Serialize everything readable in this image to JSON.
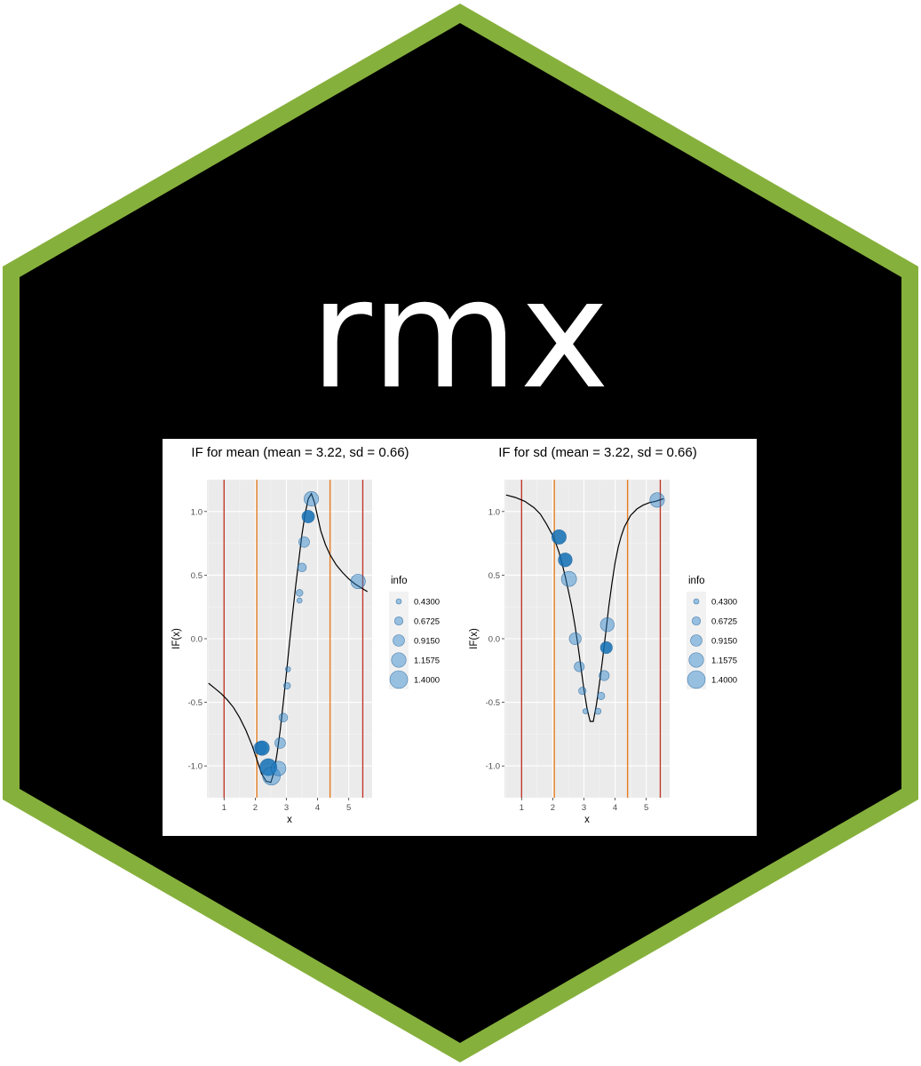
{
  "logo": {
    "title": "rmx",
    "colors": {
      "border": "#86b03c",
      "background": "#000000",
      "text": "#ffffff"
    }
  },
  "chart_data": [
    {
      "type": "scatter",
      "title": "IF for mean (mean = 3.22, sd = 0.66)",
      "xlabel": "x",
      "ylabel": "IF(x)",
      "xlim": [
        0.45,
        5.75
      ],
      "ylim": [
        -1.25,
        1.25
      ],
      "x_ticks": [
        1,
        2,
        3,
        4,
        5
      ],
      "y_ticks": [
        -1.0,
        -0.5,
        0.0,
        0.5,
        1.0
      ],
      "y_tick_labels": [
        "-1.0",
        "-0.5",
        "0.0",
        "0.5",
        "1.0"
      ],
      "grid": true,
      "background": "#ebebeb",
      "vlines": [
        {
          "x": 1.0,
          "color": "#c0392b"
        },
        {
          "x": 2.05,
          "color": "#e67e22"
        },
        {
          "x": 4.4,
          "color": "#e67e22"
        },
        {
          "x": 5.45,
          "color": "#c0392b"
        }
      ],
      "curve": {
        "x": [
          0.5,
          0.7,
          0.9,
          1.1,
          1.3,
          1.5,
          1.7,
          1.9,
          2.05,
          2.2,
          2.35,
          2.5,
          2.6,
          2.7,
          2.8,
          2.9,
          3.0,
          3.1,
          3.2,
          3.3,
          3.4,
          3.5,
          3.6,
          3.7,
          3.8,
          3.9,
          4.0,
          4.1,
          4.25,
          4.4,
          4.6,
          4.8,
          5.0,
          5.2,
          5.4,
          5.6
        ],
        "y": [
          -0.35,
          -0.39,
          -0.43,
          -0.48,
          -0.54,
          -0.62,
          -0.72,
          -0.84,
          -0.95,
          -1.06,
          -1.12,
          -1.13,
          -1.05,
          -0.9,
          -0.72,
          -0.5,
          -0.27,
          -0.03,
          0.2,
          0.42,
          0.62,
          0.82,
          0.98,
          1.1,
          1.14,
          1.07,
          0.96,
          0.85,
          0.74,
          0.66,
          0.58,
          0.52,
          0.47,
          0.43,
          0.4,
          0.37
        ]
      },
      "points": [
        {
          "x": 2.15,
          "y": -0.86,
          "info": 1.0,
          "highlight": false
        },
        {
          "x": 2.22,
          "y": -0.86,
          "info": 1.15,
          "highlight": true
        },
        {
          "x": 2.42,
          "y": -1.01,
          "info": 1.35,
          "highlight": true
        },
        {
          "x": 2.52,
          "y": -1.08,
          "info": 1.4,
          "highlight": false
        },
        {
          "x": 2.75,
          "y": -1.02,
          "info": 1.15,
          "highlight": false
        },
        {
          "x": 2.8,
          "y": -0.82,
          "info": 0.85,
          "highlight": false
        },
        {
          "x": 2.9,
          "y": -0.62,
          "info": 0.7,
          "highlight": false
        },
        {
          "x": 3.02,
          "y": -0.37,
          "info": 0.55,
          "highlight": false
        },
        {
          "x": 3.05,
          "y": -0.24,
          "info": 0.43,
          "highlight": false
        },
        {
          "x": 3.42,
          "y": 0.3,
          "info": 0.43,
          "highlight": false
        },
        {
          "x": 3.42,
          "y": 0.36,
          "info": 0.55,
          "highlight": false
        },
        {
          "x": 3.5,
          "y": 0.56,
          "info": 0.7,
          "highlight": false
        },
        {
          "x": 3.57,
          "y": 0.76,
          "info": 0.85,
          "highlight": false
        },
        {
          "x": 3.7,
          "y": 0.96,
          "info": 1.0,
          "highlight": true
        },
        {
          "x": 3.8,
          "y": 1.1,
          "info": 1.15,
          "highlight": false
        },
        {
          "x": 5.3,
          "y": 0.45,
          "info": 1.15,
          "highlight": false
        }
      ],
      "legend": {
        "title": "info",
        "labels": [
          "0.4300",
          "0.6725",
          "0.9150",
          "1.1575",
          "1.4000"
        ],
        "values": [
          0.43,
          0.6725,
          0.915,
          1.1575,
          1.4
        ]
      }
    },
    {
      "type": "scatter",
      "title": "IF for sd (mean = 3.22, sd = 0.66)",
      "xlabel": "x",
      "ylabel": "IF(x)",
      "xlim": [
        0.45,
        5.75
      ],
      "ylim": [
        -1.25,
        1.25
      ],
      "x_ticks": [
        1,
        2,
        3,
        4,
        5
      ],
      "y_ticks": [
        -1.0,
        -0.5,
        0.0,
        0.5,
        1.0
      ],
      "y_tick_labels": [
        "-1.0",
        "-0.5",
        "0.0",
        "0.5",
        "1.0"
      ],
      "grid": true,
      "background": "#ebebeb",
      "vlines": [
        {
          "x": 1.0,
          "color": "#c0392b"
        },
        {
          "x": 2.05,
          "color": "#e67e22"
        },
        {
          "x": 4.4,
          "color": "#e67e22"
        },
        {
          "x": 5.45,
          "color": "#c0392b"
        }
      ],
      "curve": {
        "x": [
          0.5,
          0.8,
          1.1,
          1.4,
          1.6,
          1.8,
          2.0,
          2.1,
          2.2,
          2.3,
          2.4,
          2.5,
          2.6,
          2.7,
          2.8,
          2.9,
          3.0,
          3.1,
          3.2,
          3.3,
          3.4,
          3.5,
          3.6,
          3.7,
          3.8,
          3.9,
          4.0,
          4.1,
          4.2,
          4.3,
          4.5,
          4.7,
          4.9,
          5.1,
          5.3,
          5.55
        ],
        "y": [
          1.13,
          1.11,
          1.08,
          1.03,
          0.98,
          0.9,
          0.81,
          0.75,
          0.68,
          0.59,
          0.49,
          0.38,
          0.26,
          0.12,
          -0.04,
          -0.22,
          -0.4,
          -0.55,
          -0.65,
          -0.65,
          -0.52,
          -0.35,
          -0.16,
          0.05,
          0.26,
          0.44,
          0.6,
          0.72,
          0.81,
          0.88,
          0.97,
          1.02,
          1.05,
          1.07,
          1.08,
          1.1
        ]
      },
      "points": [
        {
          "x": 2.2,
          "y": 0.8,
          "info": 1.15,
          "highlight": true
        },
        {
          "x": 2.4,
          "y": 0.62,
          "info": 1.1,
          "highlight": true
        },
        {
          "x": 2.52,
          "y": 0.47,
          "info": 1.2,
          "highlight": false
        },
        {
          "x": 2.72,
          "y": 0.0,
          "info": 0.95,
          "highlight": false
        },
        {
          "x": 2.85,
          "y": -0.22,
          "info": 0.8,
          "highlight": false
        },
        {
          "x": 2.95,
          "y": -0.41,
          "info": 0.6,
          "highlight": false
        },
        {
          "x": 3.05,
          "y": -0.57,
          "info": 0.43,
          "highlight": false
        },
        {
          "x": 3.45,
          "y": -0.57,
          "info": 0.5,
          "highlight": false
        },
        {
          "x": 3.55,
          "y": -0.45,
          "info": 0.6,
          "highlight": false
        },
        {
          "x": 3.65,
          "y": -0.29,
          "info": 0.8,
          "highlight": false
        },
        {
          "x": 3.72,
          "y": -0.07,
          "info": 0.95,
          "highlight": true
        },
        {
          "x": 3.75,
          "y": 0.11,
          "info": 1.1,
          "highlight": false
        },
        {
          "x": 5.35,
          "y": 1.09,
          "info": 1.15,
          "highlight": false
        }
      ],
      "legend": {
        "title": "info",
        "labels": [
          "0.4300",
          "0.6725",
          "0.9150",
          "1.1575",
          "1.4000"
        ],
        "values": [
          0.43,
          0.6725,
          0.915,
          1.1575,
          1.4
        ]
      }
    }
  ]
}
